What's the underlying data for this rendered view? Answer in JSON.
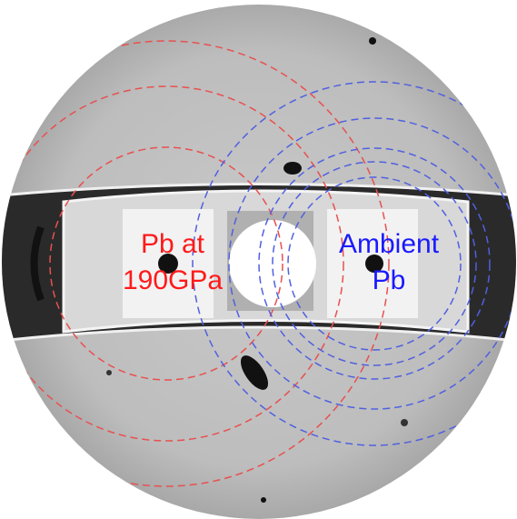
{
  "left_label": [
    "Pb at",
    "190GPa"
  ],
  "right_label": [
    "Ambient",
    "Pb"
  ]
}
